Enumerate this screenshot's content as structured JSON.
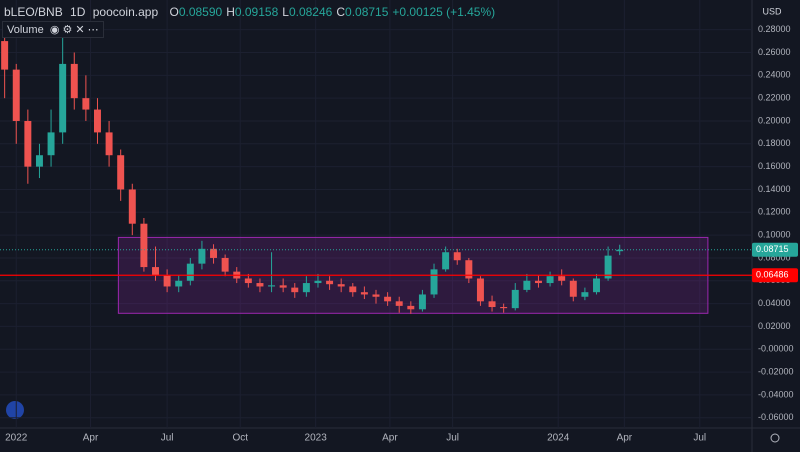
{
  "chart_data": {
    "type": "candlestick",
    "symbol": "bLEO/BNB",
    "interval": "1D",
    "source": "poocoin.app",
    "ohlc_legend": {
      "o_label": "O",
      "o": "0.08590",
      "h_label": "H",
      "h": "0.09158",
      "l_label": "L",
      "l": "0.08246",
      "c_label": "C",
      "c": "0.08715",
      "change": "+0.00125 (+1.45%)"
    },
    "pane_label": "Volume",
    "currency": "USD",
    "open": [
      0.27,
      0.245,
      0.2,
      0.16,
      0.17,
      0.19,
      0.25,
      0.22,
      0.21,
      0.19,
      0.17,
      0.14,
      0.11,
      0.072,
      0.065,
      0.055,
      0.06,
      0.075,
      0.088,
      0.08,
      0.068,
      0.062,
      0.058,
      0.055,
      0.056,
      0.054,
      0.05,
      0.058,
      0.06,
      0.057,
      0.055,
      0.05,
      0.048,
      0.046,
      0.042,
      0.038,
      0.035,
      0.048,
      0.07,
      0.085,
      0.078,
      0.062,
      0.042,
      0.037,
      0.036,
      0.052,
      0.06,
      0.058,
      0.064,
      0.06,
      0.046,
      0.05,
      0.062,
      0.0859
    ],
    "high": [
      0.28,
      0.25,
      0.21,
      0.18,
      0.21,
      0.28,
      0.26,
      0.24,
      0.22,
      0.2,
      0.175,
      0.145,
      0.115,
      0.09,
      0.07,
      0.065,
      0.08,
      0.095,
      0.092,
      0.083,
      0.072,
      0.066,
      0.062,
      0.085,
      0.062,
      0.058,
      0.064,
      0.066,
      0.064,
      0.062,
      0.058,
      0.055,
      0.052,
      0.05,
      0.046,
      0.042,
      0.052,
      0.075,
      0.09,
      0.088,
      0.08,
      0.064,
      0.047,
      0.04,
      0.058,
      0.066,
      0.065,
      0.068,
      0.07,
      0.062,
      0.054,
      0.066,
      0.09,
      0.09158
    ],
    "low": [
      0.22,
      0.18,
      0.145,
      0.15,
      0.16,
      0.18,
      0.21,
      0.2,
      0.18,
      0.16,
      0.13,
      0.1,
      0.068,
      0.06,
      0.05,
      0.05,
      0.056,
      0.07,
      0.075,
      0.064,
      0.058,
      0.054,
      0.05,
      0.05,
      0.05,
      0.045,
      0.046,
      0.054,
      0.052,
      0.05,
      0.046,
      0.044,
      0.04,
      0.038,
      0.032,
      0.031,
      0.033,
      0.045,
      0.068,
      0.074,
      0.058,
      0.038,
      0.033,
      0.032,
      0.034,
      0.05,
      0.054,
      0.055,
      0.056,
      0.042,
      0.043,
      0.048,
      0.06,
      0.08246
    ],
    "close": [
      0.245,
      0.2,
      0.16,
      0.17,
      0.19,
      0.25,
      0.22,
      0.21,
      0.19,
      0.17,
      0.14,
      0.11,
      0.072,
      0.065,
      0.055,
      0.06,
      0.075,
      0.088,
      0.08,
      0.068,
      0.062,
      0.058,
      0.055,
      0.056,
      0.054,
      0.05,
      0.058,
      0.06,
      0.057,
      0.055,
      0.05,
      0.048,
      0.046,
      0.042,
      0.038,
      0.035,
      0.048,
      0.07,
      0.085,
      0.078,
      0.062,
      0.042,
      0.037,
      0.036,
      0.052,
      0.06,
      0.058,
      0.064,
      0.06,
      0.046,
      0.05,
      0.062,
      0.082,
      0.08715
    ],
    "up_color": "#26a69a",
    "down_color": "#ef5350",
    "xlim": [
      -0.4,
      64.4
    ],
    "xticks": [
      {
        "value": 1,
        "label": "2022"
      },
      {
        "value": 7.4,
        "label": "Apr"
      },
      {
        "value": 14,
        "label": "Jul"
      },
      {
        "value": 20.3,
        "label": "Oct"
      },
      {
        "value": 26.8,
        "label": "2023"
      },
      {
        "value": 33.2,
        "label": "Apr"
      },
      {
        "value": 38.6,
        "label": "Jul"
      },
      {
        "value": 47.7,
        "label": "2024"
      },
      {
        "value": 53.4,
        "label": "Apr"
      },
      {
        "value": 59.9,
        "label": "Jul"
      }
    ],
    "ylim": [
      -0.069,
      0.306
    ],
    "yticks": [
      {
        "value": 0.28,
        "label": "0.28000"
      },
      {
        "value": 0.26,
        "label": "0.26000"
      },
      {
        "value": 0.24,
        "label": "0.24000"
      },
      {
        "value": 0.22,
        "label": "0.22000"
      },
      {
        "value": 0.2,
        "label": "0.20000"
      },
      {
        "value": 0.18,
        "label": "0.18000"
      },
      {
        "value": 0.16,
        "label": "0.16000"
      },
      {
        "value": 0.14,
        "label": "0.14000"
      },
      {
        "value": 0.12,
        "label": "0.12000"
      },
      {
        "value": 0.1,
        "label": "0.10000"
      },
      {
        "value": 0.08,
        "label": "0.08000"
      },
      {
        "value": 0.06,
        "label": "0.06000"
      },
      {
        "value": 0.04,
        "label": "0.04000"
      },
      {
        "value": 0.02,
        "label": "0.02000"
      },
      {
        "value": 0,
        "label": "-0.00000"
      },
      {
        "value": -0.02,
        "label": "-0.02000"
      },
      {
        "value": -0.04,
        "label": "-0.04000"
      },
      {
        "value": -0.06,
        "label": "-0.06000"
      }
    ],
    "last_price": {
      "value": 0.08715,
      "label": "0.08715",
      "color": "#26a69a"
    },
    "hline": {
      "value": 0.06486,
      "label": "0.06486",
      "color": "#ff0000"
    },
    "box": {
      "x": [
        9.8,
        60.6
      ],
      "y": [
        0.0315,
        0.098
      ],
      "color": "#9c27b0"
    }
  }
}
